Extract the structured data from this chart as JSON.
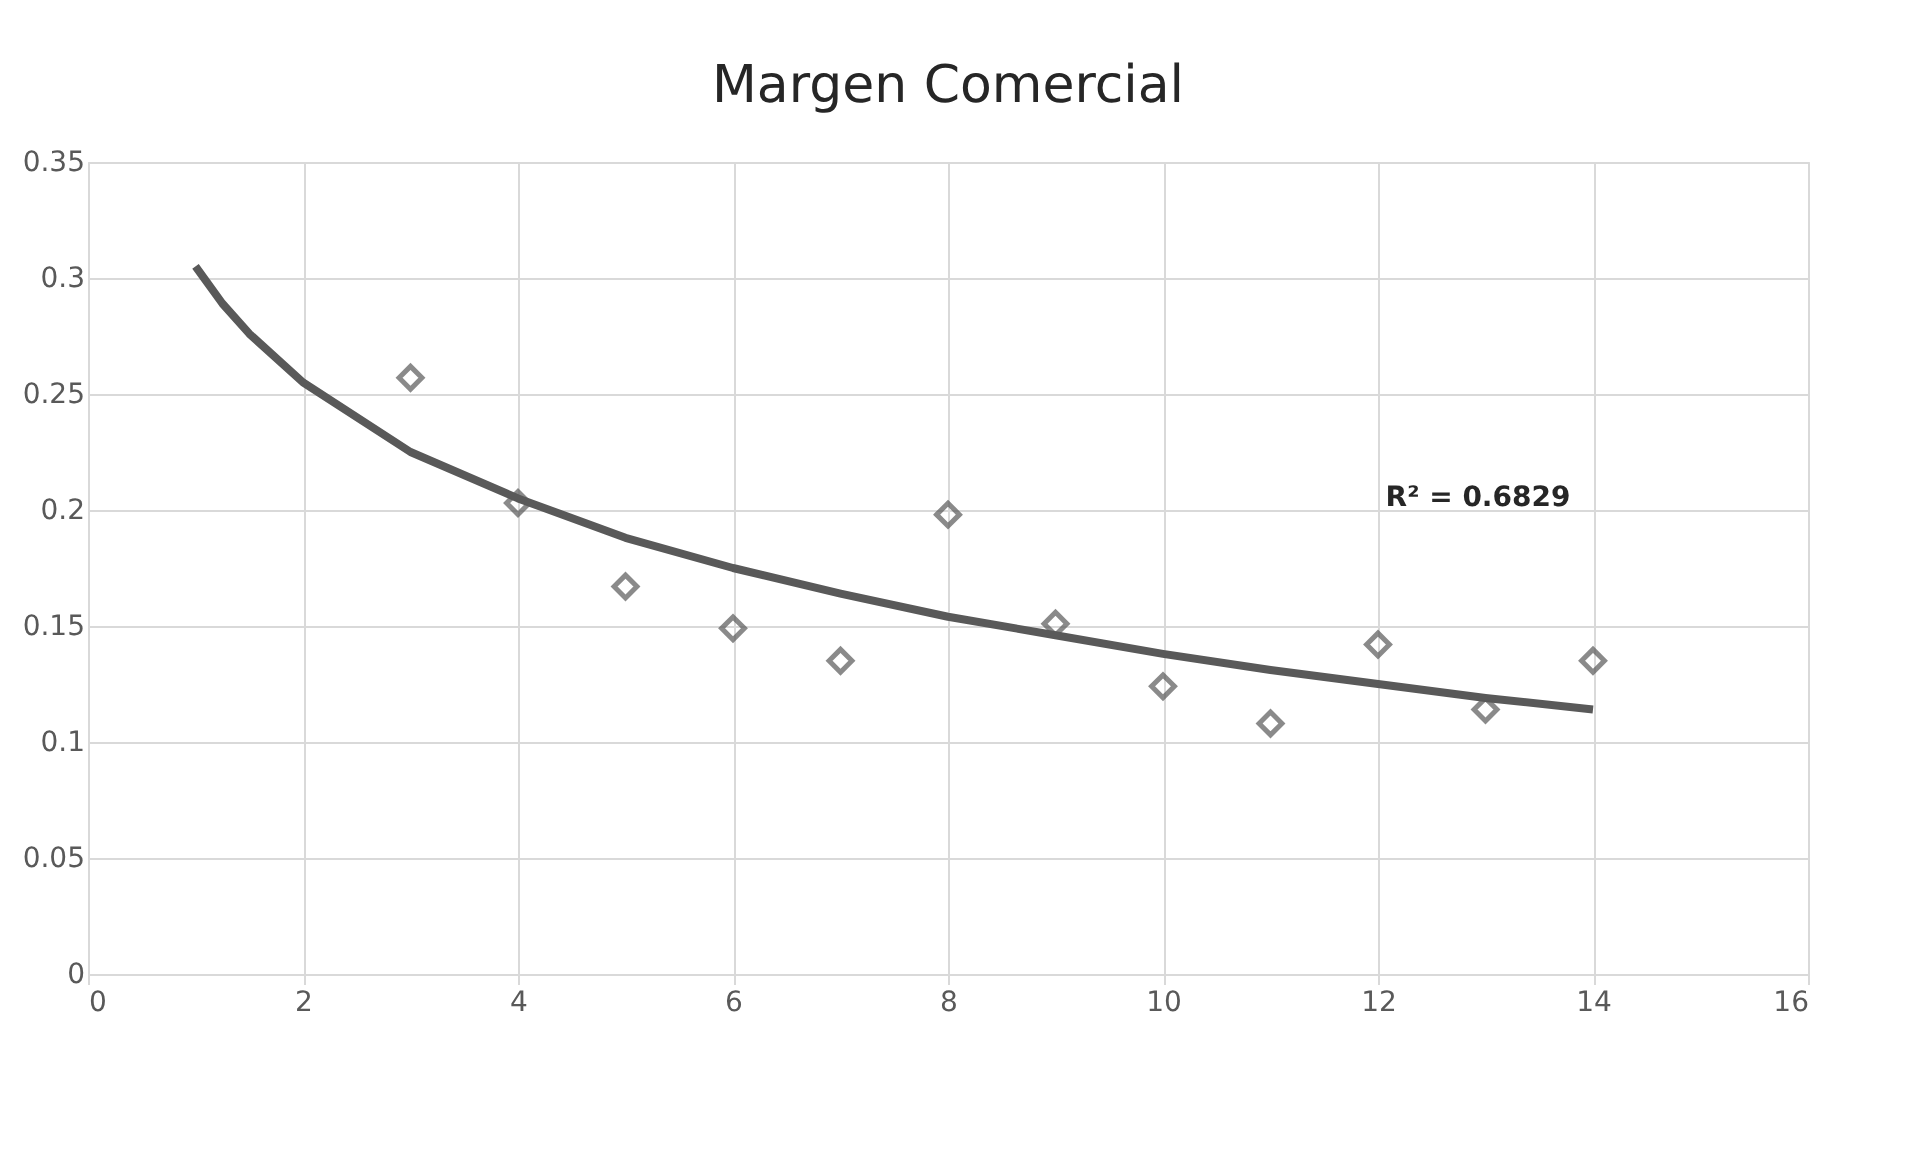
{
  "chart_data": {
    "type": "scatter",
    "title": "Margen Comercial",
    "series": [
      {
        "color": "#595959",
        "marker": "diamond",
        "x": [
          3,
          4,
          5,
          6,
          7,
          8,
          9,
          10,
          11,
          12,
          13,
          14
        ],
        "values": [
          0.257,
          0.203,
          0.167,
          0.149,
          0.135,
          0.198,
          0.151,
          0.124,
          0.108,
          0.142,
          0.114,
          0.135
        ]
      },
      {
        "type": "line",
        "color": "#595959",
        "marker": "none",
        "line_style": "solid",
        "x": [
          1,
          1.25,
          1.5,
          2,
          3,
          4,
          5,
          6,
          7,
          8,
          9,
          10,
          11,
          12,
          13,
          14
        ],
        "values": [
          0.305,
          0.289,
          0.276,
          0.255,
          0.225,
          0.205,
          0.188,
          0.175,
          0.164,
          0.154,
          0.146,
          0.138,
          0.131,
          0.125,
          0.119,
          0.114
        ]
      }
    ],
    "annotations": [
      "R² = 0.6829"
    ],
    "xlim": [
      0,
      16
    ],
    "xticks": [
      0,
      2,
      4,
      6,
      8,
      10,
      12,
      14,
      16
    ],
    "ylim": [
      0,
      0.35
    ],
    "yticks": [
      0,
      0.05,
      0.1,
      0.15,
      0.2,
      0.25,
      0.3,
      0.35
    ],
    "grid": true
  }
}
